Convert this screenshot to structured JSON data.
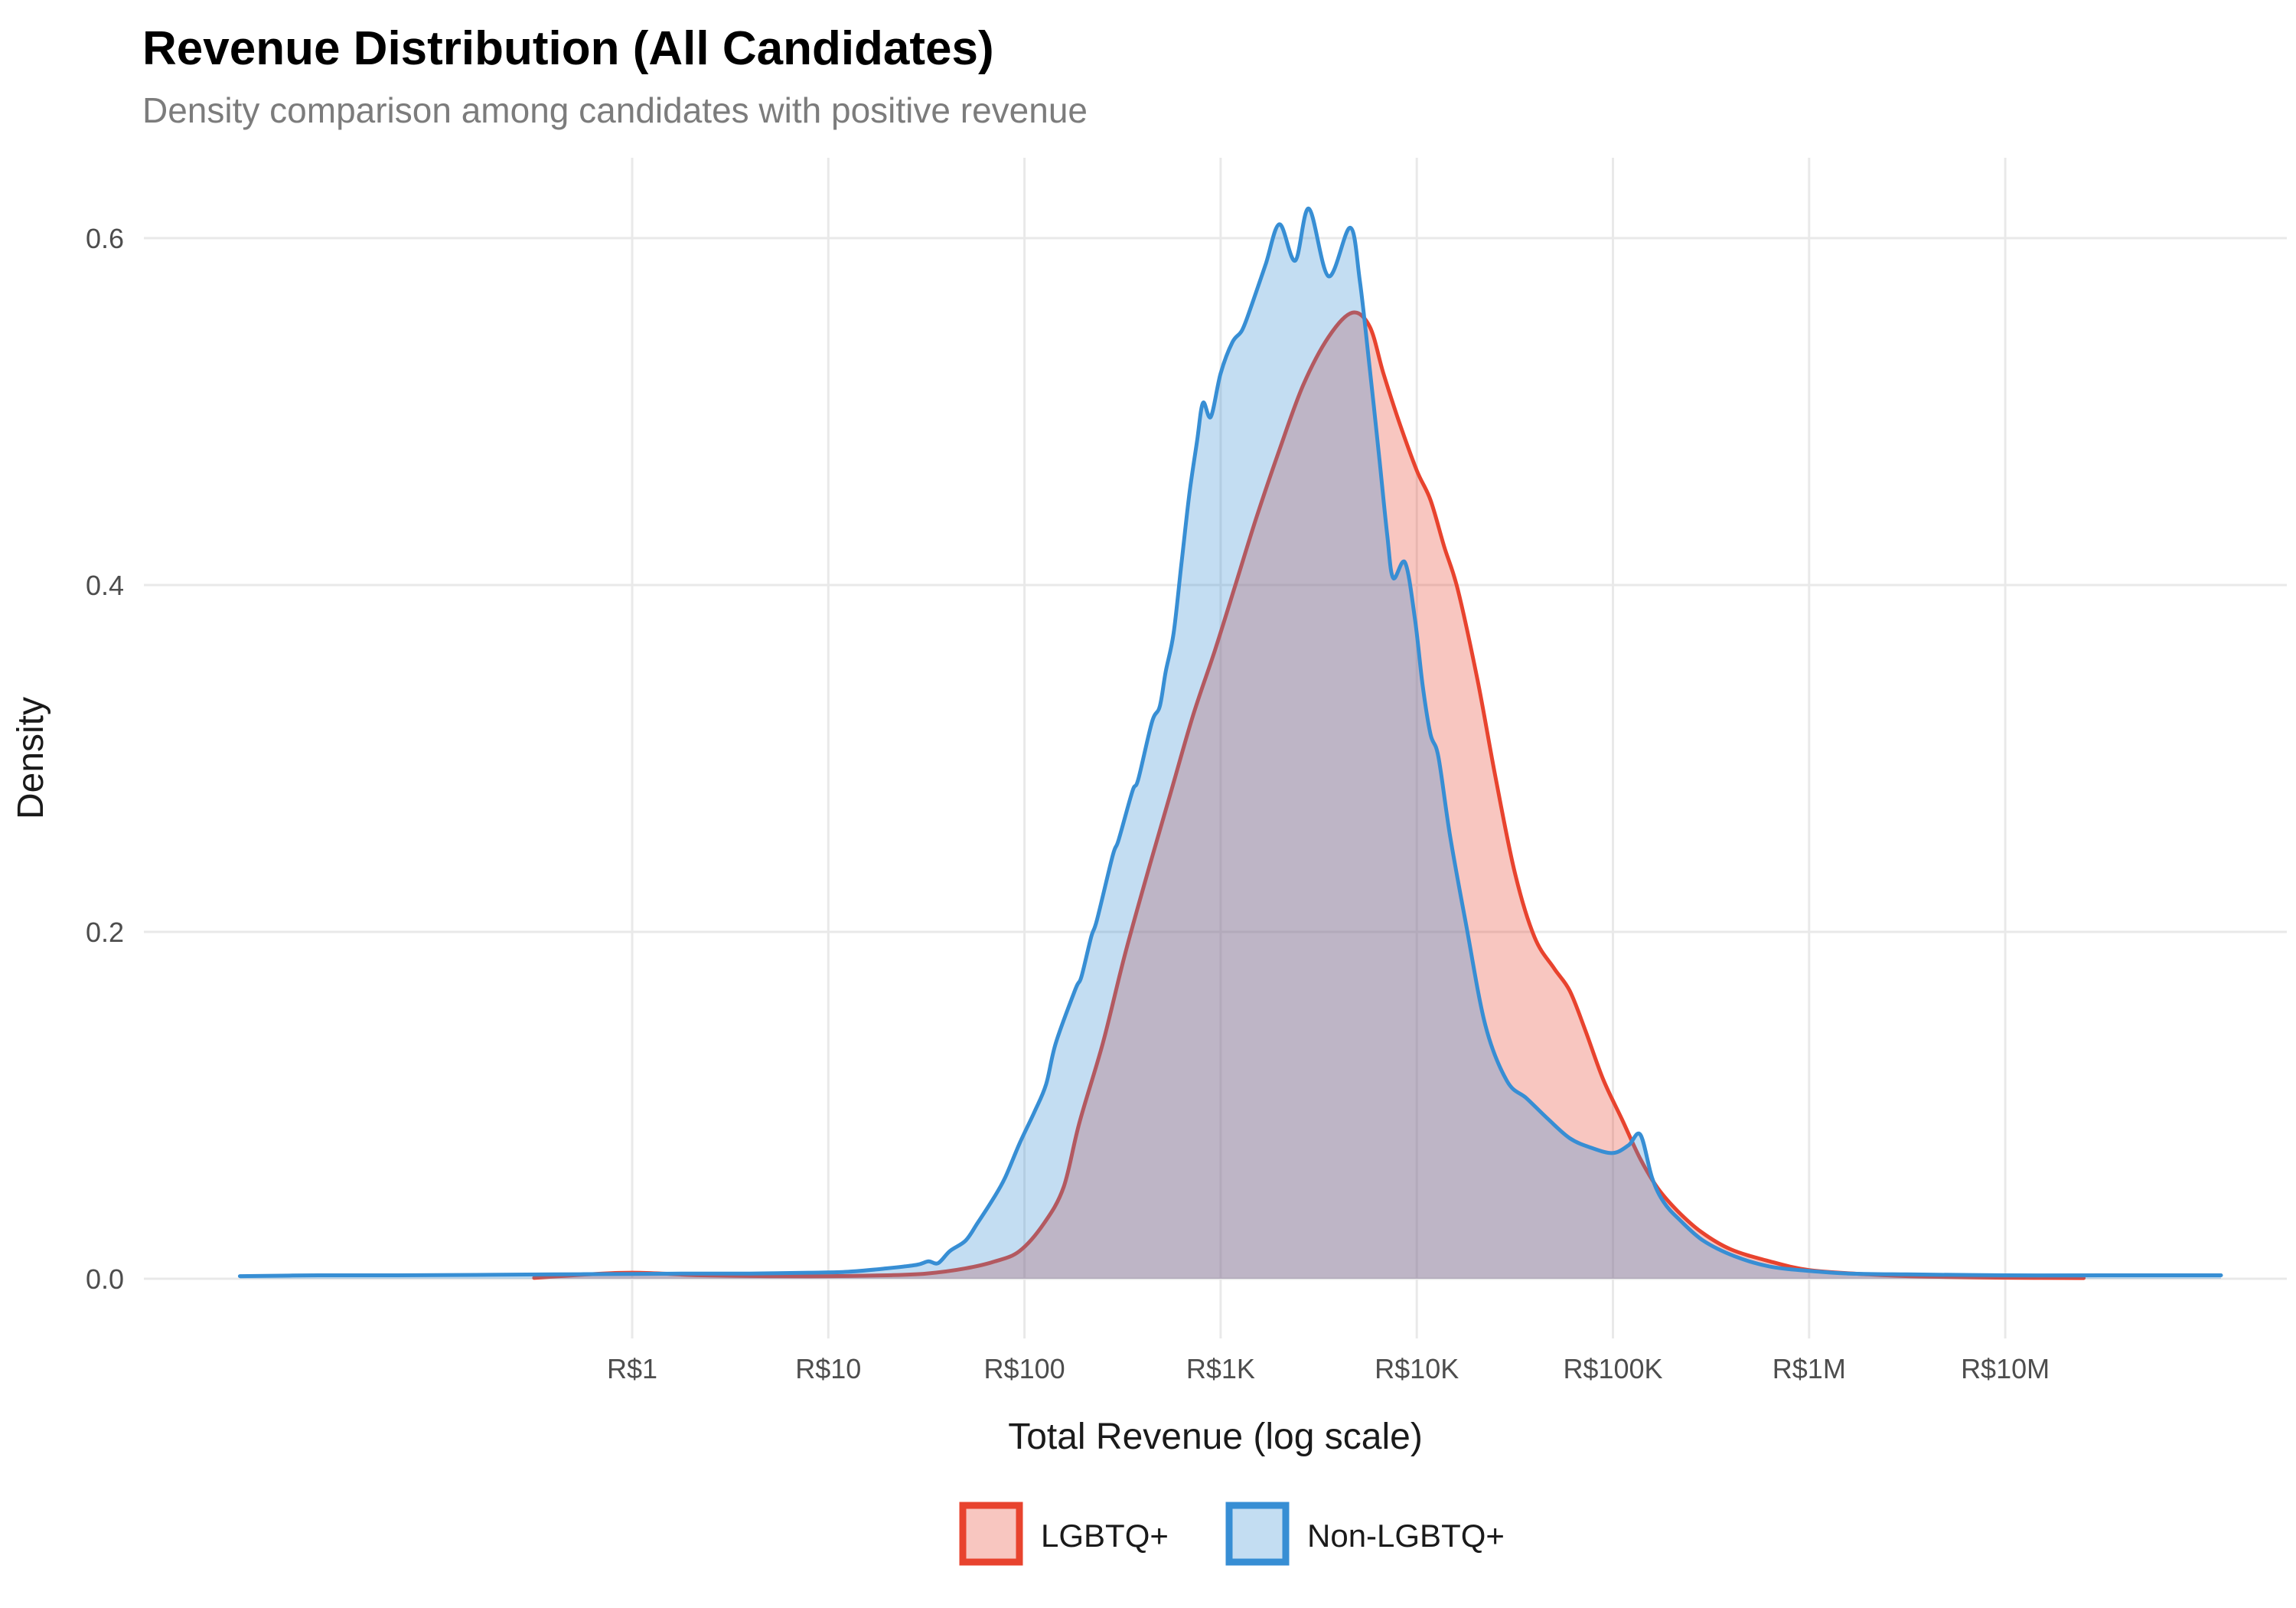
{
  "title": "Revenue Distribution (All Candidates)",
  "subtitle": "Density comparison among candidates with positive revenue",
  "axes": {
    "x": {
      "label": "Total Revenue (log scale)",
      "scale": "log10",
      "ticks": [
        {
          "log": 0,
          "label": "R$1"
        },
        {
          "log": 1,
          "label": "R$10"
        },
        {
          "log": 2,
          "label": "R$100"
        },
        {
          "log": 3,
          "label": "R$1K"
        },
        {
          "log": 4,
          "label": "R$10K"
        },
        {
          "log": 5,
          "label": "R$100K"
        },
        {
          "log": 6,
          "label": "R$1M"
        },
        {
          "log": 7,
          "label": "R$10M"
        }
      ]
    },
    "y": {
      "label": "Density",
      "ticks": [
        {
          "value": 0.0,
          "label": "0.0"
        },
        {
          "value": 0.2,
          "label": "0.2"
        },
        {
          "value": 0.4,
          "label": "0.4"
        },
        {
          "value": 0.6,
          "label": "0.6"
        }
      ]
    }
  },
  "chart_data": {
    "type": "area",
    "title": "Revenue Distribution (All Candidates)",
    "subtitle": "Density comparison among candidates with positive revenue",
    "xlabel": "Total Revenue (log scale)",
    "ylabel": "Density",
    "x_scale": "log10",
    "xlim_log10": [
      -2.5,
      8.3
    ],
    "ylim": [
      0,
      0.65
    ],
    "grid": true,
    "legend_position": "bottom",
    "background": "#ffffff",
    "gridline_color": "#e9e9e9",
    "fill_opacity": 0.3,
    "series": [
      {
        "id": "lgbtq",
        "name": "LGBTQ+",
        "color": "#E8432E",
        "points_log10x_density": [
          [
            -0.5,
            0.0005
          ],
          [
            -0.3,
            0.002
          ],
          [
            -0.15,
            0.003
          ],
          [
            0,
            0.0035
          ],
          [
            0.15,
            0.003
          ],
          [
            0.35,
            0.002
          ],
          [
            0.7,
            0.0015
          ],
          [
            1.0,
            0.0015
          ],
          [
            1.3,
            0.002
          ],
          [
            1.5,
            0.003
          ],
          [
            1.7,
            0.006
          ],
          [
            1.85,
            0.01
          ],
          [
            1.975,
            0.016
          ],
          [
            2.1,
            0.032
          ],
          [
            2.2,
            0.053
          ],
          [
            2.28,
            0.09
          ],
          [
            2.4,
            0.136
          ],
          [
            2.51,
            0.186
          ],
          [
            2.63,
            0.235
          ],
          [
            2.75,
            0.282
          ],
          [
            2.86,
            0.325
          ],
          [
            2.97,
            0.362
          ],
          [
            3.07,
            0.398
          ],
          [
            3.18,
            0.438
          ],
          [
            3.3,
            0.478
          ],
          [
            3.42,
            0.515
          ],
          [
            3.55,
            0.543
          ],
          [
            3.67,
            0.557
          ],
          [
            3.76,
            0.549
          ],
          [
            3.83,
            0.522
          ],
          [
            3.91,
            0.494
          ],
          [
            4.0,
            0.466
          ],
          [
            4.07,
            0.449
          ],
          [
            4.14,
            0.422
          ],
          [
            4.21,
            0.397
          ],
          [
            4.31,
            0.345
          ],
          [
            4.4,
            0.29
          ],
          [
            4.5,
            0.234
          ],
          [
            4.6,
            0.197
          ],
          [
            4.7,
            0.179
          ],
          [
            4.78,
            0.166
          ],
          [
            4.86,
            0.143
          ],
          [
            4.95,
            0.115
          ],
          [
            5.05,
            0.091
          ],
          [
            5.14,
            0.069
          ],
          [
            5.23,
            0.052
          ],
          [
            5.33,
            0.039
          ],
          [
            5.45,
            0.027
          ],
          [
            5.6,
            0.017
          ],
          [
            5.8,
            0.01
          ],
          [
            6.0,
            0.005
          ],
          [
            6.3,
            0.0025
          ],
          [
            6.6,
            0.0012
          ],
          [
            7.0,
            0.0006
          ],
          [
            7.4,
            0.0004
          ]
        ]
      },
      {
        "id": "non-lgbtq",
        "name": "Non-LGBTQ+",
        "color": "#378ED4",
        "points_log10x_density": [
          [
            -2.0,
            0.0015
          ],
          [
            -1.6,
            0.002
          ],
          [
            -1.2,
            0.002
          ],
          [
            -0.8,
            0.0022
          ],
          [
            -0.4,
            0.0025
          ],
          [
            0,
            0.0028
          ],
          [
            0.3,
            0.003
          ],
          [
            0.6,
            0.003
          ],
          [
            0.9,
            0.0035
          ],
          [
            1.1,
            0.004
          ],
          [
            1.3,
            0.006
          ],
          [
            1.45,
            0.008
          ],
          [
            1.51,
            0.01
          ],
          [
            1.56,
            0.009
          ],
          [
            1.62,
            0.016
          ],
          [
            1.7,
            0.022
          ],
          [
            1.76,
            0.032
          ],
          [
            1.84,
            0.046
          ],
          [
            1.9,
            0.058
          ],
          [
            1.975,
            0.078
          ],
          [
            2.05,
            0.096
          ],
          [
            2.11,
            0.112
          ],
          [
            2.16,
            0.136
          ],
          [
            2.26,
            0.167
          ],
          [
            2.29,
            0.174
          ],
          [
            2.34,
            0.197
          ],
          [
            2.37,
            0.207
          ],
          [
            2.45,
            0.244
          ],
          [
            2.48,
            0.253
          ],
          [
            2.55,
            0.281
          ],
          [
            2.58,
            0.288
          ],
          [
            2.65,
            0.321
          ],
          [
            2.69,
            0.33
          ],
          [
            2.72,
            0.35
          ],
          [
            2.76,
            0.372
          ],
          [
            2.8,
            0.412
          ],
          [
            2.84,
            0.452
          ],
          [
            2.88,
            0.483
          ],
          [
            2.91,
            0.505
          ],
          [
            2.95,
            0.497
          ],
          [
            3.0,
            0.522
          ],
          [
            3.06,
            0.54
          ],
          [
            3.11,
            0.547
          ],
          [
            3.16,
            0.562
          ],
          [
            3.23,
            0.585
          ],
          [
            3.3,
            0.608
          ],
          [
            3.38,
            0.587
          ],
          [
            3.45,
            0.617
          ],
          [
            3.55,
            0.578
          ],
          [
            3.66,
            0.606
          ],
          [
            3.71,
            0.575
          ],
          [
            3.76,
            0.525
          ],
          [
            3.81,
            0.472
          ],
          [
            3.85,
            0.428
          ],
          [
            3.88,
            0.404
          ],
          [
            3.94,
            0.413
          ],
          [
            3.99,
            0.381
          ],
          [
            4.03,
            0.342
          ],
          [
            4.07,
            0.314
          ],
          [
            4.11,
            0.301
          ],
          [
            4.17,
            0.255
          ],
          [
            4.25,
            0.205
          ],
          [
            4.35,
            0.146
          ],
          [
            4.46,
            0.114
          ],
          [
            4.56,
            0.104
          ],
          [
            4.67,
            0.092
          ],
          [
            4.78,
            0.081
          ],
          [
            4.89,
            0.0755
          ],
          [
            5.0,
            0.0725
          ],
          [
            5.08,
            0.077
          ],
          [
            5.14,
            0.083
          ],
          [
            5.2,
            0.058
          ],
          [
            5.26,
            0.044
          ],
          [
            5.34,
            0.034
          ],
          [
            5.46,
            0.022
          ],
          [
            5.62,
            0.013
          ],
          [
            5.8,
            0.007
          ],
          [
            6.0,
            0.0045
          ],
          [
            6.2,
            0.003
          ],
          [
            6.5,
            0.0025
          ],
          [
            7.0,
            0.002
          ],
          [
            7.5,
            0.002
          ],
          [
            8.1,
            0.002
          ]
        ]
      }
    ]
  },
  "legend": {
    "items": [
      {
        "label": "LGBTQ+",
        "color": "#E8432E"
      },
      {
        "label": "Non-LGBTQ+",
        "color": "#378ED4"
      }
    ]
  }
}
